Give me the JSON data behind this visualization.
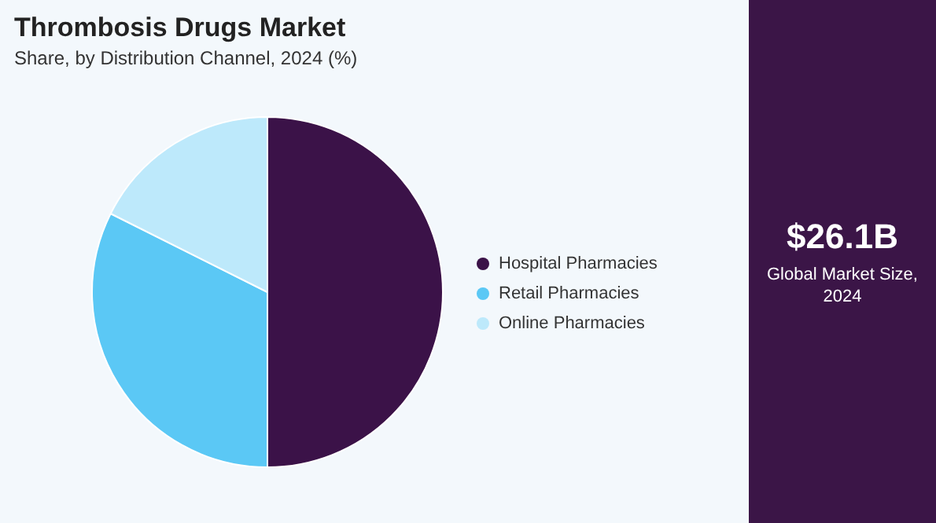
{
  "chart_data": {
    "type": "pie",
    "title": "Thrombosis Drugs Market",
    "subtitle": "Share, by Distribution Channel, 2024 (%)",
    "categories": [
      "Hospital Pharmacies",
      "Retail Pharmacies",
      "Online Pharmacies"
    ],
    "values": [
      50,
      32.4,
      17.6
    ],
    "colors": [
      "#3b1248",
      "#5bc8f5",
      "#bde9fb"
    ],
    "legend": "right",
    "annotations": [
      "$26.1B",
      "Global Market Size, 2024"
    ]
  }
}
